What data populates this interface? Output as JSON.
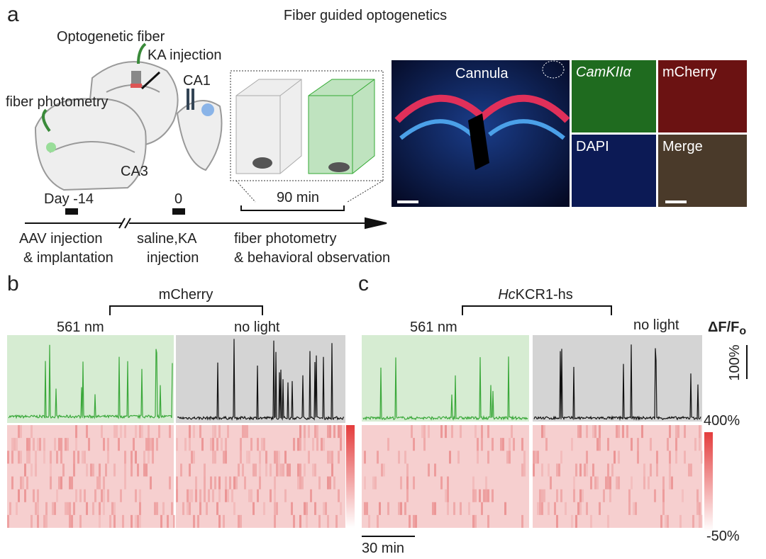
{
  "panel_a": {
    "label": "a",
    "title": "Fiber guided optogenetics",
    "schematic": {
      "optogenetic_fiber": "Optogenetic fiber",
      "ka_injection": "KA injection",
      "ca1": "CA1",
      "fiber_photometry": "fiber photometry",
      "ca3": "CA3"
    },
    "timeline": {
      "day_start": "Day -14",
      "day_zero": "0",
      "duration": "90 min",
      "step1_line1": "AAV injection",
      "step1_line2": "& implantation",
      "step2_line1": "saline,KA",
      "step2_line2": "injection",
      "step3_line1": "fiber photometry",
      "step3_line2": "& behavioral observation"
    },
    "images": {
      "cannula": "Cannula",
      "camkii": "CamKIIα",
      "mcherry": "mCherry",
      "dapi": "DAPI",
      "merge": "Merge"
    }
  },
  "panel_b": {
    "label": "b",
    "group": "mCherry",
    "light_on": "561 nm",
    "light_off": "no light"
  },
  "panel_c": {
    "label": "c",
    "group_italic": "Hc",
    "group_rest": "KCR1-hs",
    "light_on": "561 nm",
    "light_off": "no light"
  },
  "scale": {
    "dff": "ΔF/F",
    "dff_sub": "o",
    "bar_100": "100%",
    "top": "400%",
    "bottom": "-50%",
    "time": "30 min"
  }
}
